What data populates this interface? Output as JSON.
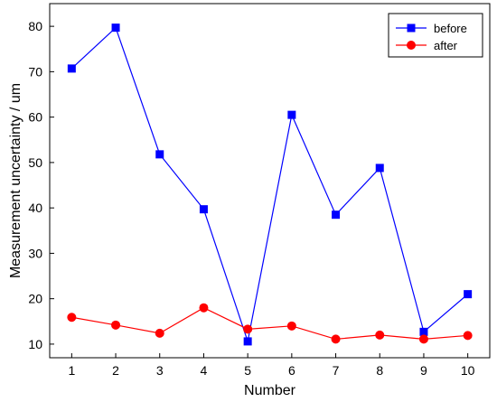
{
  "chart_data": {
    "type": "line",
    "x": [
      1,
      2,
      3,
      4,
      5,
      6,
      7,
      8,
      9,
      10
    ],
    "xlabel": "Number",
    "ylabel": "Measurement uncertainty / um",
    "xlim": [
      0.5,
      10.5
    ],
    "ylim": [
      7,
      85
    ],
    "xticks": [
      1,
      2,
      3,
      4,
      5,
      6,
      7,
      8,
      9,
      10
    ],
    "yticks": [
      10,
      20,
      30,
      40,
      50,
      60,
      70,
      80
    ],
    "grid": false,
    "legend_position": "top-right",
    "series": [
      {
        "name": "before",
        "color": "#0000ff",
        "marker": "square",
        "values": [
          70.7,
          79.7,
          51.8,
          39.7,
          10.6,
          60.5,
          38.5,
          48.8,
          12.7,
          21.0
        ]
      },
      {
        "name": "after",
        "color": "#ff0000",
        "marker": "circle",
        "values": [
          15.9,
          14.2,
          12.4,
          18.0,
          13.3,
          14.0,
          11.1,
          12.0,
          11.1,
          11.9
        ]
      }
    ]
  }
}
